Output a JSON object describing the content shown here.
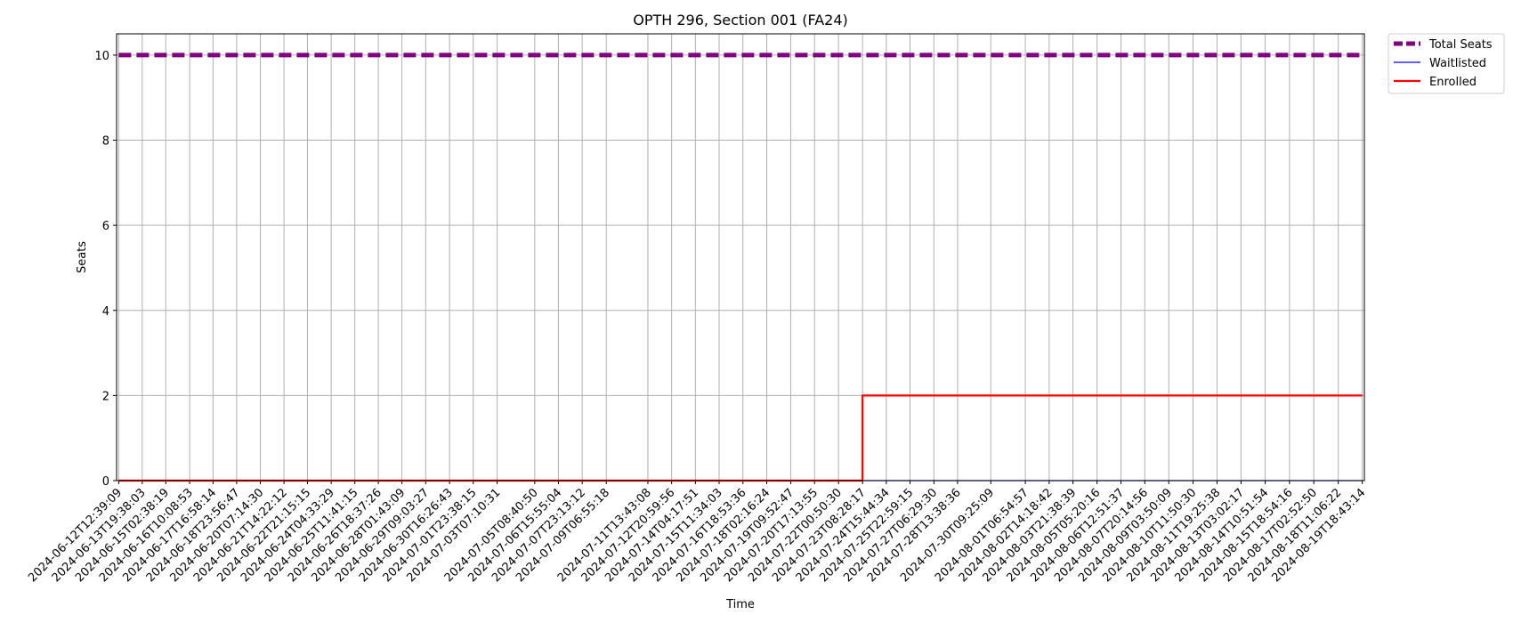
{
  "chart_data": {
    "type": "line",
    "title": "OPTH 296, Section 001 (FA24)",
    "xlabel": "Time",
    "ylabel": "Seats",
    "ylim": [
      0,
      10.5
    ],
    "yticks": [
      0,
      2,
      4,
      6,
      8,
      10
    ],
    "grid": true,
    "legend_position": "outside-top-right",
    "x_ticks": [
      "2024-06-12T12:39:09",
      "2024-06-13T19:38:03",
      "2024-06-15T02:38:19",
      "2024-06-16T10:08:53",
      "2024-06-17T16:58:14",
      "2024-06-18T23:56:47",
      "2024-06-20T07:14:30",
      "2024-06-21T14:22:12",
      "2024-06-22T21:15:15",
      "2024-06-24T04:33:29",
      "2024-06-25T11:41:15",
      "2024-06-26T18:37:26",
      "2024-06-28T01:43:09",
      "2024-06-29T09:03:27",
      "2024-06-30T16:26:43",
      "2024-07-01T23:38:15",
      "2024-07-03T07:10:31",
      "2024-07-05T08:40:50",
      "2024-07-06T15:55:04",
      "2024-07-07T23:13:12",
      "2024-07-09T06:55:18",
      "2024-07-11T13:43:08",
      "2024-07-12T20:59:56",
      "2024-07-14T04:17:51",
      "2024-07-15T11:34:03",
      "2024-07-16T18:53:36",
      "2024-07-18T02:16:24",
      "2024-07-19T09:52:47",
      "2024-07-20T17:13:55",
      "2024-07-22T00:50:30",
      "2024-07-23T08:28:17",
      "2024-07-24T15:44:34",
      "2024-07-25T22:59:15",
      "2024-07-27T06:29:30",
      "2024-07-28T13:38:36",
      "2024-07-30T09:25:09",
      "2024-08-01T06:54:57",
      "2024-08-02T14:18:42",
      "2024-08-03T21:38:39",
      "2024-08-05T05:20:16",
      "2024-08-06T12:51:37",
      "2024-08-07T20:14:56",
      "2024-08-09T03:50:09",
      "2024-08-10T11:50:30",
      "2024-08-11T19:25:38",
      "2024-08-13T03:02:17",
      "2024-08-14T10:51:54",
      "2024-08-15T18:54:16",
      "2024-08-17T02:52:50",
      "2024-08-18T11:06:22",
      "2024-08-19T18:43:14"
    ],
    "series": [
      {
        "name": "Total Seats",
        "color": "#800080",
        "style": "dashed",
        "x": [
          "2024-06-12T12:39:09",
          "2024-08-19T18:43:14"
        ],
        "values": [
          10,
          10
        ]
      },
      {
        "name": "Waitlisted",
        "color": "#0000ff",
        "style": "solid",
        "x": [
          "2024-06-12T12:39:09",
          "2024-08-19T18:43:14"
        ],
        "values": [
          0,
          0
        ]
      },
      {
        "name": "Enrolled",
        "color": "#ff0000",
        "style": "step",
        "x": [
          "2024-06-12T12:39:09",
          "2024-07-23T08:28:17",
          "2024-07-23T08:28:17",
          "2024-08-19T18:43:14"
        ],
        "values": [
          0,
          0,
          2,
          2
        ]
      }
    ]
  }
}
